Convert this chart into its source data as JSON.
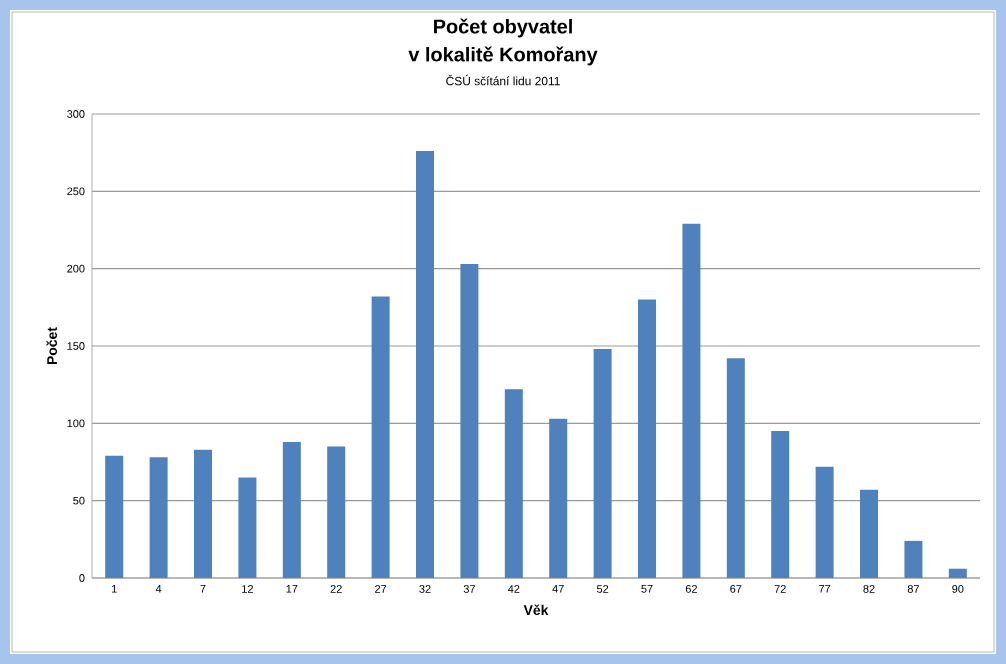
{
  "chart_data": {
    "type": "bar",
    "title": "Počet obyvatel",
    "subtitle": "v lokalitě Komořany",
    "annotations": [
      "ČSÚ sčítání lidu 2011"
    ],
    "xlabel": "Věk",
    "ylabel": "Počet",
    "categories": [
      "1",
      "4",
      "7",
      "12",
      "17",
      "22",
      "27",
      "32",
      "37",
      "42",
      "47",
      "52",
      "57",
      "62",
      "67",
      "72",
      "77",
      "82",
      "87",
      "90"
    ],
    "values": [
      79,
      78,
      83,
      65,
      88,
      85,
      182,
      276,
      203,
      122,
      103,
      148,
      180,
      229,
      142,
      95,
      72,
      57,
      24,
      6
    ],
    "color": "#4f81bd",
    "ylim": [
      0,
      300
    ],
    "yticks": [
      0,
      50,
      100,
      150,
      200,
      250,
      300
    ],
    "grid": "y"
  }
}
